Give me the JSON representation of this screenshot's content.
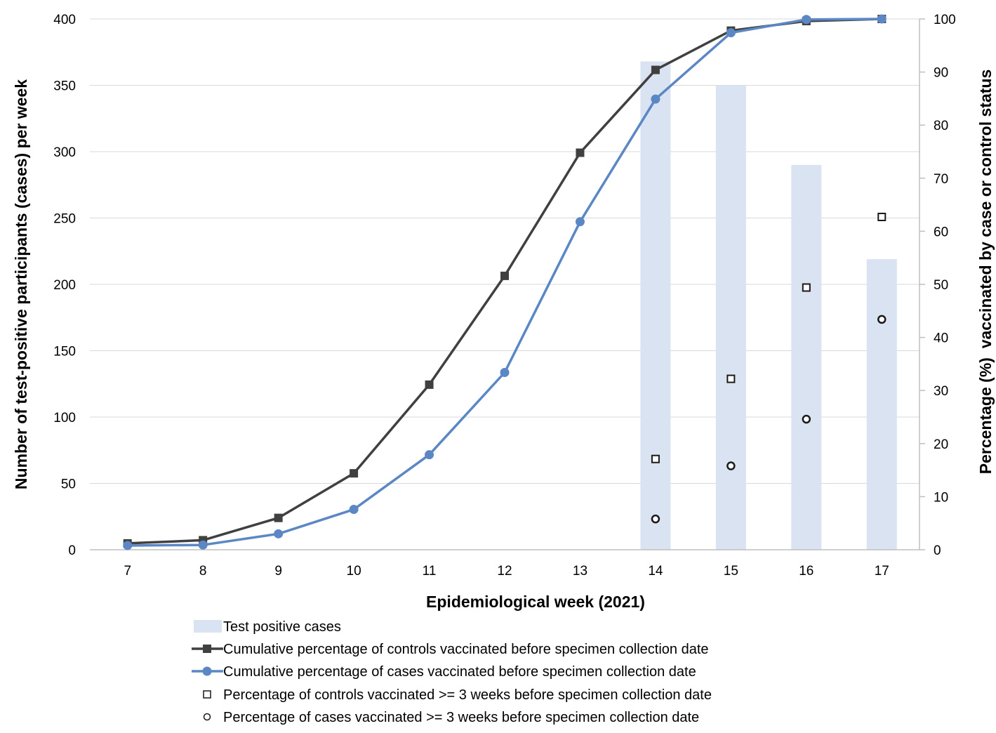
{
  "chart_data": {
    "type": "bar",
    "title": "",
    "xlabel": "Epidemiological week (2021)",
    "ylabel": "Number of test-positive participants (cases) per week",
    "y2label": "Percentage (%)  vaccinated by case or control status",
    "categories": [
      "7",
      "8",
      "9",
      "10",
      "11",
      "12",
      "13",
      "14",
      "15",
      "16",
      "17"
    ],
    "ylim": [
      0,
      400
    ],
    "y2lim": [
      0,
      100
    ],
    "yticks": [
      "0",
      "50",
      "100",
      "150",
      "200",
      "250",
      "300",
      "350",
      "400"
    ],
    "y2ticks": [
      "0",
      "10",
      "20",
      "30",
      "40",
      "50",
      "60",
      "70",
      "80",
      "90",
      "100"
    ],
    "grid": true,
    "legend_position": "bottom",
    "series": [
      {
        "name": "Test positive cases",
        "kind": "bar",
        "axis": "left",
        "color": "#dae3f1",
        "values": [
          null,
          null,
          null,
          null,
          null,
          null,
          null,
          368,
          350,
          290,
          219
        ]
      },
      {
        "name": "Cumulative percentage of controls vaccinated before specimen collection date",
        "kind": "line",
        "marker": "square-filled",
        "axis": "right",
        "color": "#404040",
        "values": [
          1.2,
          1.8,
          6.0,
          14.4,
          31.1,
          51.6,
          74.8,
          90.4,
          97.8,
          99.6,
          100
        ]
      },
      {
        "name": "Cumulative percentage of cases vaccinated before specimen collection date",
        "kind": "line",
        "marker": "circle-filled",
        "axis": "right",
        "color": "#5b87c5",
        "values": [
          0.8,
          0.9,
          3.0,
          7.6,
          17.9,
          33.4,
          61.8,
          84.9,
          97.4,
          99.9,
          100
        ]
      },
      {
        "name": "Percentage of controls vaccinated >= 3 weeks before specimen collection date",
        "kind": "scatter",
        "marker": "square-open",
        "axis": "right",
        "color": "#1a1a1a",
        "values": [
          null,
          null,
          null,
          null,
          null,
          null,
          null,
          17.1,
          32.2,
          49.4,
          62.7
        ]
      },
      {
        "name": "Percentage of cases vaccinated >= 3 weeks before specimen collection date",
        "kind": "scatter",
        "marker": "circle-open",
        "axis": "right",
        "color": "#1a1a1a",
        "values": [
          null,
          null,
          null,
          null,
          null,
          null,
          null,
          5.8,
          15.8,
          24.6,
          43.4
        ]
      }
    ]
  }
}
